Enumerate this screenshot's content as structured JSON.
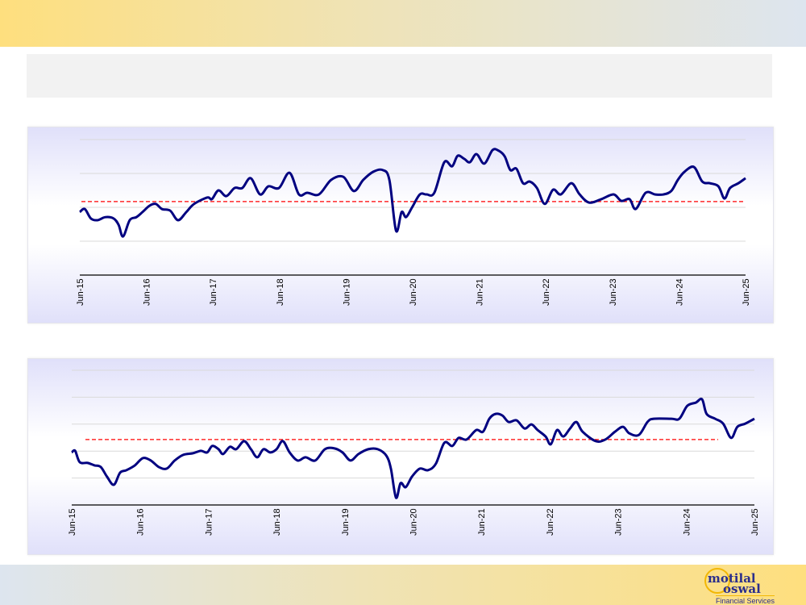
{
  "logo": {
    "line1": "motilal",
    "line2": "oswal",
    "tagline": "Financial Services"
  },
  "colors": {
    "series": "#000080",
    "average": "#ff0000",
    "grid": "#d9d9d9"
  },
  "chart_data": [
    {
      "type": "line",
      "title": "",
      "xlabel": "",
      "ylabel": "",
      "x_unit": "months since Jun-15",
      "tick_labels": [
        "Jun-15",
        "Jun-16",
        "Jun-17",
        "Jun-18",
        "Jun-19",
        "Jun-20",
        "Jun-21",
        "Jun-22",
        "Jun-23",
        "Jun-24",
        "Jun-25"
      ],
      "ylim": [
        0,
        4
      ],
      "grid": true,
      "average": 2.17,
      "series": [
        {
          "name": "series",
          "points": [
            [
              0,
              1.86
            ],
            [
              0.9,
              1.95
            ],
            [
              2,
              1.67
            ],
            [
              3.2,
              1.62
            ],
            [
              4.6,
              1.71
            ],
            [
              6.1,
              1.67
            ],
            [
              7,
              1.48
            ],
            [
              7.8,
              1.14
            ],
            [
              9,
              1.62
            ],
            [
              10.2,
              1.71
            ],
            [
              11.3,
              1.86
            ],
            [
              12.6,
              2.05
            ],
            [
              13.7,
              2.1
            ],
            [
              14.8,
              1.95
            ],
            [
              16.3,
              1.9
            ],
            [
              17.7,
              1.62
            ],
            [
              19.2,
              1.86
            ],
            [
              20.6,
              2.1
            ],
            [
              23,
              2.29
            ],
            [
              23.8,
              2.24
            ],
            [
              25,
              2.5
            ],
            [
              26.4,
              2.33
            ],
            [
              27.9,
              2.57
            ],
            [
              29.3,
              2.57
            ],
            [
              30.8,
              2.86
            ],
            [
              32.5,
              2.38
            ],
            [
              34,
              2.62
            ],
            [
              35.9,
              2.57
            ],
            [
              37.8,
              3.02
            ],
            [
              39.5,
              2.38
            ],
            [
              41,
              2.43
            ],
            [
              43.1,
              2.38
            ],
            [
              45.3,
              2.81
            ],
            [
              47.5,
              2.9
            ],
            [
              49.4,
              2.48
            ],
            [
              51.1,
              2.81
            ],
            [
              52.9,
              3.05
            ],
            [
              54.6,
              3.1
            ],
            [
              55.8,
              2.81
            ],
            [
              57,
              1.31
            ],
            [
              58,
              1.86
            ],
            [
              58.8,
              1.71
            ],
            [
              59.9,
              2.0
            ],
            [
              61.3,
              2.38
            ],
            [
              62.5,
              2.38
            ],
            [
              63.9,
              2.43
            ],
            [
              65.7,
              3.33
            ],
            [
              67.1,
              3.21
            ],
            [
              68.1,
              3.52
            ],
            [
              69.3,
              3.43
            ],
            [
              70.3,
              3.33
            ],
            [
              71.5,
              3.57
            ],
            [
              72.9,
              3.29
            ],
            [
              74.4,
              3.69
            ],
            [
              75.5,
              3.67
            ],
            [
              76.6,
              3.5
            ],
            [
              77.6,
              3.1
            ],
            [
              78.7,
              3.14
            ],
            [
              79.9,
              2.71
            ],
            [
              81.1,
              2.76
            ],
            [
              82.4,
              2.57
            ],
            [
              83.8,
              2.1
            ],
            [
              85.3,
              2.52
            ],
            [
              86.7,
              2.38
            ],
            [
              88.6,
              2.71
            ],
            [
              90.1,
              2.38
            ],
            [
              91.8,
              2.14
            ],
            [
              94,
              2.24
            ],
            [
              96.2,
              2.38
            ],
            [
              97.6,
              2.19
            ],
            [
              99.1,
              2.24
            ],
            [
              100.2,
              1.95
            ],
            [
              102,
              2.43
            ],
            [
              103.7,
              2.38
            ],
            [
              105.2,
              2.38
            ],
            [
              106.6,
              2.48
            ],
            [
              107.8,
              2.81
            ],
            [
              109,
              3.05
            ],
            [
              110.7,
              3.19
            ],
            [
              112.2,
              2.76
            ],
            [
              113.6,
              2.71
            ],
            [
              115.1,
              2.62
            ],
            [
              116.2,
              2.26
            ],
            [
              117.2,
              2.57
            ],
            [
              118.7,
              2.71
            ],
            [
              120,
              2.86
            ]
          ]
        }
      ]
    },
    {
      "type": "line",
      "title": "",
      "xlabel": "",
      "ylabel": "",
      "x_unit": "months since Jun-15",
      "tick_labels": [
        "Jun-15",
        "Jun-16",
        "Jun-17",
        "Jun-18",
        "Jun-19",
        "Jun-20",
        "Jun-21",
        "Jun-22",
        "Jun-23",
        "Jun-24",
        "Jun-25"
      ],
      "ylim": [
        0,
        5
      ],
      "grid": true,
      "average": 2.43,
      "series": [
        {
          "name": "series",
          "points": [
            [
              0,
              1.95
            ],
            [
              0.6,
              2.01
            ],
            [
              1.4,
              1.59
            ],
            [
              2.8,
              1.56
            ],
            [
              4,
              1.47
            ],
            [
              5.1,
              1.41
            ],
            [
              6.2,
              1.05
            ],
            [
              7.4,
              0.75
            ],
            [
              8.5,
              1.2
            ],
            [
              9.6,
              1.29
            ],
            [
              11.1,
              1.47
            ],
            [
              12.5,
              1.74
            ],
            [
              13.9,
              1.65
            ],
            [
              15.3,
              1.41
            ],
            [
              16.7,
              1.35
            ],
            [
              18.1,
              1.65
            ],
            [
              19.6,
              1.86
            ],
            [
              21.3,
              1.92
            ],
            [
              22.7,
              2.01
            ],
            [
              23.8,
              1.95
            ],
            [
              24.7,
              2.19
            ],
            [
              25.8,
              2.07
            ],
            [
              26.6,
              1.89
            ],
            [
              27.8,
              2.16
            ],
            [
              28.9,
              2.07
            ],
            [
              30.3,
              2.37
            ],
            [
              31.5,
              2.07
            ],
            [
              32.6,
              1.77
            ],
            [
              33.7,
              2.07
            ],
            [
              34.9,
              1.95
            ],
            [
              36,
              2.07
            ],
            [
              37.1,
              2.37
            ],
            [
              38.3,
              1.95
            ],
            [
              39.7,
              1.65
            ],
            [
              41.1,
              1.77
            ],
            [
              42.8,
              1.65
            ],
            [
              44.5,
              2.07
            ],
            [
              46.2,
              2.1
            ],
            [
              47.6,
              1.95
            ],
            [
              49,
              1.65
            ],
            [
              50.4,
              1.89
            ],
            [
              52.1,
              2.07
            ],
            [
              53.8,
              2.07
            ],
            [
              55.3,
              1.83
            ],
            [
              56.1,
              1.35
            ],
            [
              57,
              0.27
            ],
            [
              57.8,
              0.81
            ],
            [
              58.7,
              0.66
            ],
            [
              59.8,
              1.05
            ],
            [
              61.2,
              1.35
            ],
            [
              62.6,
              1.29
            ],
            [
              64,
              1.53
            ],
            [
              65.5,
              2.31
            ],
            [
              66.9,
              2.19
            ],
            [
              68,
              2.49
            ],
            [
              69.4,
              2.43
            ],
            [
              71.1,
              2.78
            ],
            [
              72.3,
              2.72
            ],
            [
              73.4,
              3.2
            ],
            [
              74.5,
              3.38
            ],
            [
              75.7,
              3.32
            ],
            [
              76.8,
              3.08
            ],
            [
              78.2,
              3.14
            ],
            [
              79.6,
              2.84
            ],
            [
              80.8,
              2.99
            ],
            [
              81.9,
              2.78
            ],
            [
              83.3,
              2.54
            ],
            [
              84.2,
              2.25
            ],
            [
              85.3,
              2.78
            ],
            [
              86.4,
              2.54
            ],
            [
              87.6,
              2.84
            ],
            [
              88.7,
              3.08
            ],
            [
              89.8,
              2.72
            ],
            [
              92.1,
              2.37
            ],
            [
              93.8,
              2.43
            ],
            [
              95.5,
              2.72
            ],
            [
              96.9,
              2.9
            ],
            [
              98,
              2.66
            ],
            [
              99.7,
              2.6
            ],
            [
              101.2,
              3.08
            ],
            [
              102.3,
              3.2
            ],
            [
              105.4,
              3.2
            ],
            [
              106.8,
              3.2
            ],
            [
              108.2,
              3.68
            ],
            [
              109.7,
              3.8
            ],
            [
              110.8,
              3.92
            ],
            [
              111.6,
              3.38
            ],
            [
              113.1,
              3.2
            ],
            [
              114.5,
              3.02
            ],
            [
              115.9,
              2.49
            ],
            [
              117,
              2.9
            ],
            [
              118.4,
              3.02
            ],
            [
              120,
              3.2
            ]
          ]
        }
      ]
    }
  ]
}
